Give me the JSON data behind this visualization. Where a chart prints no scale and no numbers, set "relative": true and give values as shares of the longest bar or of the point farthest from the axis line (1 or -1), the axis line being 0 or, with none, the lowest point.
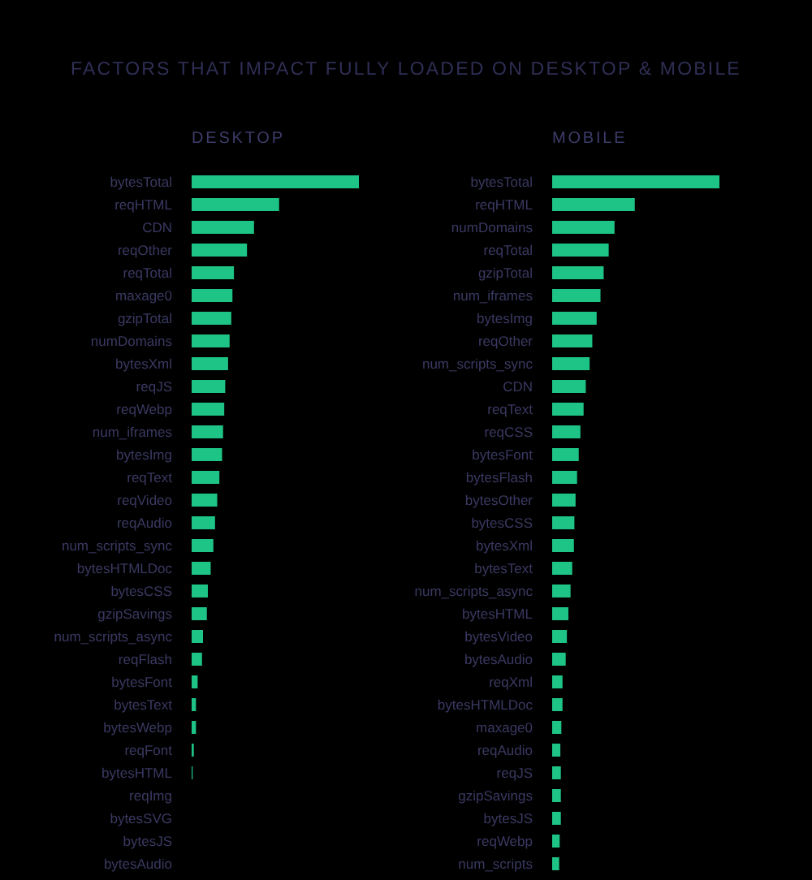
{
  "chart_data": [
    {
      "type": "bar",
      "orientation": "horizontal",
      "relative": true,
      "title": "FACTORS THAT IMPACT FULLY LOADED ON DESKTOP & MOBILE",
      "subtitle": "DESKTOP",
      "color": "#1dc485",
      "categories": [
        "bytesTotal",
        "reqHTML",
        "CDN",
        "reqOther",
        "reqTotal",
        "maxage0",
        "gzipTotal",
        "numDomains",
        "bytesXml",
        "reqJS",
        "reqWebp",
        "num_iframes",
        "bytesImg",
        "reqText",
        "reqVideo",
        "reqAudio",
        "num_scripts_sync",
        "bytesHTMLDoc",
        "bytesCSS",
        "gzipSavings",
        "num_scripts_async",
        "reqFlash",
        "bytesFont",
        "bytesText",
        "bytesWebp",
        "reqFont",
        "bytesHTML",
        "reqImg",
        "bytesSVG",
        "bytesJS",
        "bytesAudio"
      ],
      "values": [
        1,
        0.523,
        0.373,
        0.331,
        0.253,
        0.244,
        0.237,
        0.227,
        0.218,
        0.201,
        0.195,
        0.188,
        0.182,
        0.166,
        0.153,
        0.14,
        0.13,
        0.114,
        0.097,
        0.091,
        0.068,
        0.062,
        0.036,
        0.026,
        0.026,
        0.013,
        0.006,
        0,
        0,
        0,
        0
      ]
    },
    {
      "type": "bar",
      "orientation": "horizontal",
      "relative": true,
      "subtitle": "MOBILE",
      "color": "#1dc485",
      "categories": [
        "bytesTotal",
        "reqHTML",
        "numDomains",
        "reqTotal",
        "gzipTotal",
        "num_iframes",
        "bytesImg",
        "reqOther",
        "num_scripts_sync",
        "CDN",
        "reqText",
        "reqCSS",
        "bytesFont",
        "bytesFlash",
        "bytesOther",
        "bytesCSS",
        "bytesXml",
        "bytesText",
        "num_scripts_async",
        "bytesHTML",
        "bytesVideo",
        "bytesAudio",
        "reqXml",
        "bytesHTMLDoc",
        "maxage0",
        "reqAudio",
        "reqJS",
        "gzipSavings",
        "bytesJS",
        "reqWebp",
        "num_scripts"
      ],
      "values": [
        1,
        0.494,
        0.373,
        0.338,
        0.308,
        0.289,
        0.266,
        0.24,
        0.224,
        0.201,
        0.188,
        0.169,
        0.159,
        0.149,
        0.14,
        0.133,
        0.13,
        0.12,
        0.11,
        0.097,
        0.088,
        0.081,
        0.062,
        0.062,
        0.055,
        0.049,
        0.052,
        0.052,
        0.052,
        0.045,
        0.042
      ]
    }
  ]
}
